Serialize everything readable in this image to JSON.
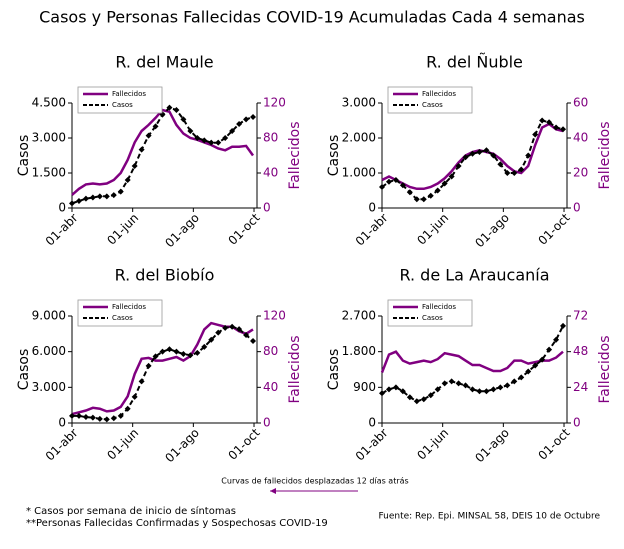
{
  "title": "Casos y Personas Fallecidas COVID-19 Acumuladas Cada 4 semanas",
  "annotation": "Curvas de fallecidos desplazadas 12 días atrás",
  "footnotes": [
    "* Casos por semana de inicio de síntomas",
    "**Personas Fallecidas Confirmadas y Sospechosas COVID-19"
  ],
  "source": "Fuente: Rep. Epi. MINSAL 58, DEIS 10 de Octubre",
  "chart_data": [
    {
      "type": "line",
      "title": "R. del Maule",
      "y_label": "Casos",
      "y2_label": "Fallecidos",
      "legend": "upper left",
      "x": [
        0,
        7,
        14,
        21,
        28,
        35,
        42,
        49,
        56,
        63,
        70,
        77,
        84,
        91,
        98,
        105,
        112,
        119,
        126,
        133,
        140,
        147,
        154,
        161,
        168,
        175,
        182
      ],
      "xlim": [
        0,
        186
      ],
      "xticks": [
        {
          "value": 0,
          "label": "01-abr"
        },
        {
          "value": 61,
          "label": "01-jun"
        },
        {
          "value": 122,
          "label": "01-ago"
        },
        {
          "value": 183,
          "label": "01-oct"
        }
      ],
      "ylim": [
        0,
        4500
      ],
      "yticks": [
        0,
        {
          "value": 1500,
          "label": "1.500"
        },
        {
          "value": 3000,
          "label": "3.000"
        },
        {
          "value": 4500,
          "label": "4.500"
        }
      ],
      "y2lim": [
        0,
        120
      ],
      "y2ticks": [
        0,
        40,
        80,
        120
      ],
      "series": [
        {
          "name": "Fallecidos",
          "color": "#800080",
          "axis": "y2",
          "values": [
            15,
            22,
            27,
            28,
            27,
            28,
            32,
            40,
            55,
            75,
            88,
            95,
            103,
            112,
            110,
            95,
            85,
            80,
            78,
            75,
            72,
            68,
            66,
            70,
            70,
            71,
            60
          ]
        },
        {
          "name": "Casos",
          "color": "#000000",
          "values": [
            200,
            300,
            400,
            450,
            500,
            500,
            550,
            700,
            1200,
            1800,
            2500,
            3100,
            3500,
            4000,
            4300,
            4200,
            3800,
            3300,
            3000,
            2900,
            2800,
            2800,
            3000,
            3300,
            3600,
            3800,
            3900
          ]
        }
      ]
    },
    {
      "type": "line",
      "title": "R. del Ñuble",
      "y_label": "Casos",
      "y2_label": "Fallecidos",
      "legend": "upper left",
      "x": [
        0,
        7,
        14,
        21,
        28,
        35,
        42,
        49,
        56,
        63,
        70,
        77,
        84,
        91,
        98,
        105,
        112,
        119,
        126,
        133,
        140,
        147,
        154,
        161,
        168,
        175,
        182
      ],
      "xlim": [
        0,
        186
      ],
      "xticks": [
        {
          "value": 0,
          "label": "01-abr"
        },
        {
          "value": 61,
          "label": "01-jun"
        },
        {
          "value": 122,
          "label": "01-ago"
        },
        {
          "value": 183,
          "label": "01-oct"
        }
      ],
      "ylim": [
        0,
        3000
      ],
      "yticks": [
        0,
        {
          "value": 1000,
          "label": "1.000"
        },
        {
          "value": 2000,
          "label": "2.000"
        },
        {
          "value": 3000,
          "label": "3.000"
        }
      ],
      "y2lim": [
        0,
        60
      ],
      "y2ticks": [
        0,
        20,
        40,
        60
      ],
      "series": [
        {
          "name": "Fallecidos",
          "color": "#800080",
          "axis": "y2",
          "values": [
            16,
            18,
            16,
            14,
            12,
            11,
            11,
            12,
            14,
            17,
            21,
            26,
            30,
            32,
            33,
            32,
            31,
            28,
            24,
            21,
            20,
            24,
            36,
            46,
            48,
            45,
            44
          ]
        },
        {
          "name": "Casos",
          "color": "#000000",
          "values": [
            600,
            750,
            800,
            650,
            450,
            250,
            250,
            350,
            500,
            700,
            900,
            1200,
            1450,
            1550,
            1600,
            1650,
            1500,
            1250,
            1000,
            1000,
            1100,
            1500,
            2100,
            2500,
            2450,
            2300,
            2250
          ]
        }
      ]
    },
    {
      "type": "line",
      "title": "R. del Biobío",
      "y_label": "Casos",
      "y2_label": "Fallecidos",
      "legend": "upper left",
      "x": [
        0,
        7,
        14,
        21,
        28,
        35,
        42,
        49,
        56,
        63,
        70,
        77,
        84,
        91,
        98,
        105,
        112,
        119,
        126,
        133,
        140,
        147,
        154,
        161,
        168,
        175,
        182
      ],
      "xlim": [
        0,
        186
      ],
      "xticks": [
        {
          "value": 0,
          "label": "01-abr"
        },
        {
          "value": 61,
          "label": "01-jun"
        },
        {
          "value": 122,
          "label": "01-ago"
        },
        {
          "value": 183,
          "label": "01-oct"
        }
      ],
      "ylim": [
        0,
        9000
      ],
      "yticks": [
        0,
        {
          "value": 3000,
          "label": "3.000"
        },
        {
          "value": 6000,
          "label": "6.000"
        },
        {
          "value": 9000,
          "label": "9.000"
        }
      ],
      "y2lim": [
        0,
        120
      ],
      "y2ticks": [
        0,
        40,
        80,
        120
      ],
      "series": [
        {
          "name": "Fallecidos",
          "color": "#800080",
          "axis": "y2",
          "values": [
            10,
            12,
            14,
            17,
            16,
            13,
            14,
            18,
            30,
            55,
            72,
            73,
            70,
            70,
            72,
            74,
            70,
            75,
            88,
            105,
            112,
            110,
            108,
            108,
            103,
            100,
            105
          ]
        },
        {
          "name": "Casos",
          "color": "#000000",
          "values": [
            600,
            600,
            500,
            450,
            350,
            300,
            400,
            600,
            1200,
            2200,
            3500,
            4800,
            5600,
            6000,
            6200,
            6000,
            5800,
            5700,
            5900,
            6400,
            7000,
            7600,
            8000,
            8100,
            7900,
            7400,
            6900
          ]
        }
      ]
    },
    {
      "type": "line",
      "title": "R. de La Araucanía",
      "y_label": "Casos",
      "y2_label": "Fallecidos",
      "legend": "upper left",
      "x": [
        0,
        7,
        14,
        21,
        28,
        35,
        42,
        49,
        56,
        63,
        70,
        77,
        84,
        91,
        98,
        105,
        112,
        119,
        126,
        133,
        140,
        147,
        154,
        161,
        168,
        175,
        182
      ],
      "xlim": [
        0,
        186
      ],
      "xticks": [
        {
          "value": 0,
          "label": "01-abr"
        },
        {
          "value": 61,
          "label": "01-jun"
        },
        {
          "value": 122,
          "label": "01-ago"
        },
        {
          "value": 183,
          "label": "01-oct"
        }
      ],
      "ylim": [
        0,
        2700
      ],
      "yticks": [
        0,
        900,
        {
          "value": 1800,
          "label": "1.800"
        },
        {
          "value": 2700,
          "label": "2.700"
        }
      ],
      "y2lim": [
        0,
        72
      ],
      "y2ticks": [
        0,
        24,
        48,
        72
      ],
      "series": [
        {
          "name": "Fallecidos",
          "color": "#800080",
          "axis": "y2",
          "values": [
            34,
            46,
            48,
            42,
            40,
            41,
            42,
            41,
            43,
            47,
            46,
            45,
            42,
            39,
            39,
            37,
            35,
            35,
            37,
            42,
            42,
            40,
            41,
            42,
            42,
            44,
            48
          ]
        },
        {
          "name": "Casos",
          "color": "#000000",
          "values": [
            750,
            850,
            900,
            800,
            650,
            550,
            600,
            700,
            850,
            1000,
            1050,
            1000,
            950,
            850,
            800,
            800,
            850,
            900,
            950,
            1050,
            1150,
            1300,
            1450,
            1600,
            1850,
            2100,
            2450
          ]
        }
      ]
    }
  ]
}
